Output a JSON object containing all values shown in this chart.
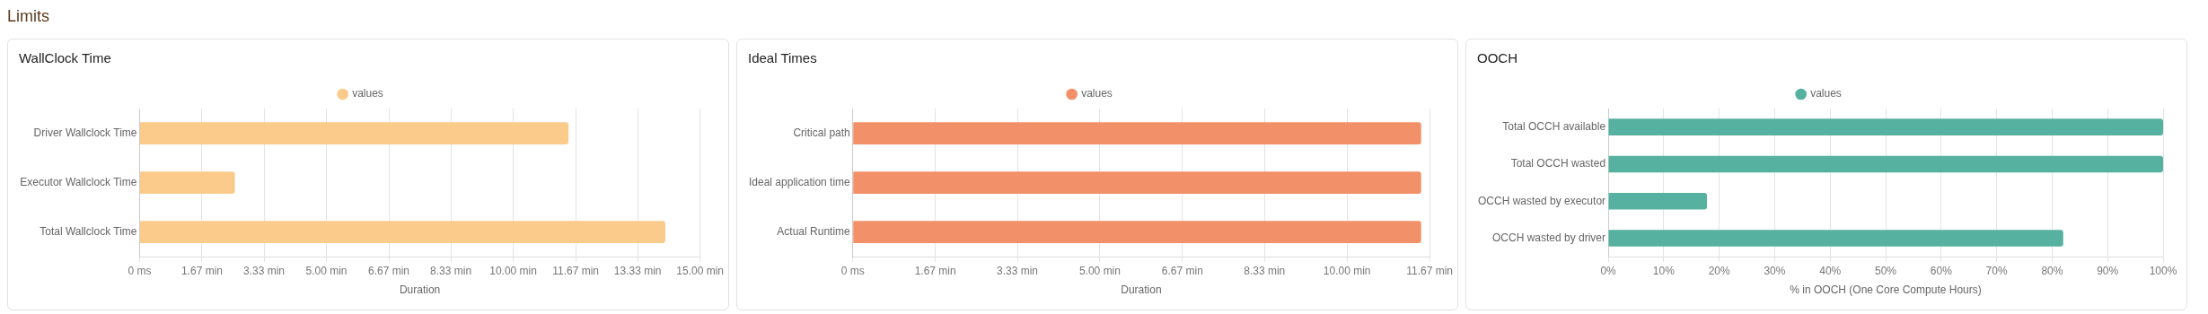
{
  "chart_data": [
    {
      "type": "other",
      "title": "Limits"
    },
    {
      "type": "bar",
      "title": "WallClock Time",
      "orientation": "horizontal",
      "categories": [
        "Driver Wallclock Time",
        "Executor Wallclock Time",
        "Total Wallclock Time"
      ],
      "series": [
        {
          "name": "values",
          "color": "#fbcb8c",
          "values": [
            11.48,
            2.55,
            14.07
          ]
        }
      ],
      "xlabel": "Duration",
      "xlim": [
        0,
        15
      ],
      "xticks": [
        {
          "value": 0,
          "label": "0 ms"
        },
        {
          "value": 1.67,
          "label": "1.67 min"
        },
        {
          "value": 3.33,
          "label": "3.33 min"
        },
        {
          "value": 5,
          "label": "5.00 min"
        },
        {
          "value": 6.67,
          "label": "6.67 min"
        },
        {
          "value": 8.33,
          "label": "8.33 min"
        },
        {
          "value": 10,
          "label": "10.00 min"
        },
        {
          "value": 11.67,
          "label": "11.67 min"
        },
        {
          "value": 13.33,
          "label": "13.33 min"
        },
        {
          "value": 15,
          "label": "15.00 min"
        }
      ],
      "grid": "x",
      "legend": "top"
    },
    {
      "type": "bar",
      "title": "Ideal Times",
      "orientation": "horizontal",
      "categories": [
        "Critical path",
        "Ideal application time",
        "Actual Runtime"
      ],
      "series": [
        {
          "name": "values",
          "color": "#f29169",
          "values": [
            11.5,
            11.5,
            11.5
          ]
        }
      ],
      "xlabel": "Duration",
      "xlim": [
        0,
        11.67
      ],
      "xticks": [
        {
          "value": 0,
          "label": "0 ms"
        },
        {
          "value": 1.67,
          "label": "1.67 min"
        },
        {
          "value": 3.33,
          "label": "3.33 min"
        },
        {
          "value": 5,
          "label": "5.00 min"
        },
        {
          "value": 6.67,
          "label": "6.67 min"
        },
        {
          "value": 8.33,
          "label": "8.33 min"
        },
        {
          "value": 10,
          "label": "10.00 min"
        },
        {
          "value": 11.67,
          "label": "11.67 min"
        }
      ],
      "grid": "x",
      "legend": "top"
    },
    {
      "type": "bar",
      "title": "OOCH",
      "orientation": "horizontal",
      "categories": [
        "Total OCCH available",
        "Total OCCH wasted",
        "OCCH wasted by executor",
        "OCCH wasted by driver"
      ],
      "series": [
        {
          "name": "values",
          "color": "#57b1a0",
          "values": [
            100,
            100,
            17.8,
            82
          ]
        }
      ],
      "xlabel": "% in OOCH (One Core Compute Hours)",
      "xlim": [
        0,
        100
      ],
      "xticks": [
        {
          "value": 0,
          "label": "0%"
        },
        {
          "value": 10,
          "label": "10%"
        },
        {
          "value": 20,
          "label": "20%"
        },
        {
          "value": 30,
          "label": "30%"
        },
        {
          "value": 40,
          "label": "40%"
        },
        {
          "value": 50,
          "label": "50%"
        },
        {
          "value": 60,
          "label": "60%"
        },
        {
          "value": 70,
          "label": "70%"
        },
        {
          "value": 80,
          "label": "80%"
        },
        {
          "value": 90,
          "label": "90%"
        },
        {
          "value": 100,
          "label": "100%"
        }
      ],
      "grid": "x",
      "legend": "top"
    }
  ]
}
